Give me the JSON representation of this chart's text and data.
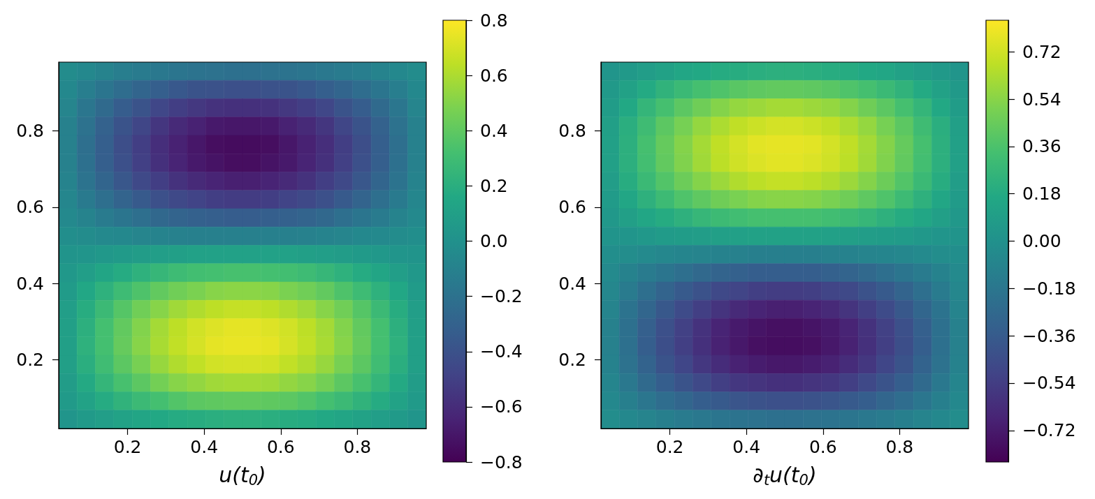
{
  "chart_data": [
    {
      "type": "heatmap",
      "xlabel": "u(t$_{0}$)",
      "x": [
        0.044,
        0.092,
        0.14,
        0.188,
        0.236,
        0.284,
        0.332,
        0.38,
        0.428,
        0.476,
        0.524,
        0.572,
        0.62,
        0.668,
        0.716,
        0.764,
        0.812,
        0.86,
        0.908,
        0.956
      ],
      "xlim": [
        0.02,
        0.98
      ],
      "ylim": [
        0.02,
        0.98
      ],
      "xticks": [
        0.2,
        0.4,
        0.6,
        0.8
      ],
      "yticks": [
        0.2,
        0.4,
        0.6,
        0.8
      ],
      "clim": [
        -0.8,
        0.8
      ],
      "cticks": [
        {
          "value": -0.8,
          "label": "−0.8"
        },
        {
          "value": -0.6,
          "label": "−0.6"
        },
        {
          "value": -0.4,
          "label": "−0.4"
        },
        {
          "value": -0.2,
          "label": "−0.2"
        },
        {
          "value": 0,
          "label": "0.0"
        },
        0.2,
        0.4,
        0.6,
        0.8
      ],
      "cells": [
        [
          -0.03,
          -0.06,
          -0.09,
          -0.12,
          -0.14,
          -0.16,
          -0.18,
          -0.19,
          -0.2,
          -0.21,
          -0.21,
          -0.2,
          -0.19,
          -0.18,
          -0.16,
          -0.14,
          -0.12,
          -0.09,
          -0.06,
          -0.03
        ],
        [
          -0.06,
          -0.12,
          -0.18,
          -0.23,
          -0.28,
          -0.32,
          -0.36,
          -0.39,
          -0.4,
          -0.41,
          -0.41,
          -0.4,
          -0.39,
          -0.36,
          -0.32,
          -0.28,
          -0.23,
          -0.18,
          -0.12,
          -0.06
        ],
        [
          -0.08,
          -0.17,
          -0.25,
          -0.33,
          -0.39,
          -0.46,
          -0.51,
          -0.54,
          -0.57,
          -0.58,
          -0.58,
          -0.57,
          -0.54,
          -0.51,
          -0.46,
          -0.39,
          -0.33,
          -0.25,
          -0.17,
          -0.08
        ],
        [
          -0.1,
          -0.2,
          -0.3,
          -0.39,
          -0.47,
          -0.55,
          -0.61,
          -0.65,
          -0.69,
          -0.7,
          -0.7,
          -0.69,
          -0.65,
          -0.61,
          -0.55,
          -0.47,
          -0.39,
          -0.3,
          -0.2,
          -0.1
        ],
        [
          -0.1,
          -0.22,
          -0.32,
          -0.42,
          -0.51,
          -0.59,
          -0.65,
          -0.7,
          -0.74,
          -0.75,
          -0.75,
          -0.74,
          -0.7,
          -0.65,
          -0.59,
          -0.51,
          -0.42,
          -0.32,
          -0.22,
          -0.1
        ],
        [
          -0.1,
          -0.21,
          -0.32,
          -0.41,
          -0.5,
          -0.58,
          -0.64,
          -0.69,
          -0.72,
          -0.74,
          -0.74,
          -0.72,
          -0.69,
          -0.64,
          -0.58,
          -0.5,
          -0.41,
          -0.32,
          -0.21,
          -0.1
        ],
        [
          -0.09,
          -0.19,
          -0.28,
          -0.37,
          -0.45,
          -0.51,
          -0.57,
          -0.61,
          -0.64,
          -0.66,
          -0.66,
          -0.64,
          -0.61,
          -0.57,
          -0.51,
          -0.45,
          -0.37,
          -0.28,
          -0.19,
          -0.09
        ],
        [
          -0.07,
          -0.15,
          -0.22,
          -0.29,
          -0.35,
          -0.41,
          -0.45,
          -0.48,
          -0.51,
          -0.52,
          -0.52,
          -0.51,
          -0.48,
          -0.45,
          -0.41,
          -0.35,
          -0.29,
          -0.22,
          -0.15,
          -0.07
        ],
        [
          -0.05,
          -0.09,
          -0.14,
          -0.18,
          -0.22,
          -0.26,
          -0.29,
          -0.31,
          -0.32,
          -0.33,
          -0.33,
          -0.32,
          -0.31,
          -0.29,
          -0.26,
          -0.22,
          -0.18,
          -0.14,
          -0.09,
          -0.05
        ],
        [
          -0.02,
          -0.03,
          -0.05,
          -0.06,
          -0.08,
          -0.09,
          -0.1,
          -0.11,
          -0.11,
          -0.11,
          -0.11,
          -0.11,
          -0.11,
          -0.1,
          -0.09,
          -0.08,
          -0.06,
          -0.05,
          -0.03,
          -0.02
        ],
        [
          0.02,
          0.03,
          0.05,
          0.06,
          0.08,
          0.09,
          0.1,
          0.11,
          0.11,
          0.11,
          0.11,
          0.11,
          0.11,
          0.1,
          0.09,
          0.08,
          0.06,
          0.05,
          0.03,
          0.02
        ],
        [
          0.05,
          0.09,
          0.14,
          0.18,
          0.22,
          0.26,
          0.29,
          0.31,
          0.32,
          0.33,
          0.33,
          0.32,
          0.31,
          0.29,
          0.26,
          0.22,
          0.18,
          0.14,
          0.09,
          0.05
        ],
        [
          0.07,
          0.15,
          0.22,
          0.29,
          0.35,
          0.41,
          0.45,
          0.48,
          0.51,
          0.52,
          0.52,
          0.51,
          0.48,
          0.45,
          0.41,
          0.35,
          0.29,
          0.22,
          0.15,
          0.07
        ],
        [
          0.09,
          0.19,
          0.28,
          0.37,
          0.45,
          0.51,
          0.57,
          0.61,
          0.64,
          0.66,
          0.66,
          0.64,
          0.61,
          0.57,
          0.51,
          0.45,
          0.37,
          0.28,
          0.19,
          0.09
        ],
        [
          0.1,
          0.21,
          0.32,
          0.41,
          0.5,
          0.58,
          0.64,
          0.69,
          0.72,
          0.74,
          0.74,
          0.72,
          0.69,
          0.64,
          0.58,
          0.5,
          0.41,
          0.32,
          0.21,
          0.1
        ],
        [
          0.1,
          0.22,
          0.32,
          0.42,
          0.51,
          0.59,
          0.65,
          0.7,
          0.74,
          0.75,
          0.75,
          0.74,
          0.7,
          0.65,
          0.59,
          0.51,
          0.42,
          0.32,
          0.22,
          0.1
        ],
        [
          0.1,
          0.2,
          0.3,
          0.39,
          0.47,
          0.55,
          0.61,
          0.65,
          0.69,
          0.7,
          0.7,
          0.69,
          0.65,
          0.61,
          0.55,
          0.47,
          0.39,
          0.3,
          0.2,
          0.1
        ],
        [
          0.08,
          0.17,
          0.25,
          0.33,
          0.39,
          0.46,
          0.51,
          0.54,
          0.57,
          0.58,
          0.58,
          0.57,
          0.54,
          0.51,
          0.46,
          0.39,
          0.33,
          0.25,
          0.17,
          0.08
        ],
        [
          0.06,
          0.12,
          0.18,
          0.23,
          0.28,
          0.32,
          0.36,
          0.39,
          0.4,
          0.41,
          0.41,
          0.4,
          0.39,
          0.36,
          0.32,
          0.28,
          0.23,
          0.18,
          0.12,
          0.06
        ],
        [
          0.03,
          0.06,
          0.09,
          0.12,
          0.14,
          0.16,
          0.18,
          0.19,
          0.2,
          0.21,
          0.21,
          0.2,
          0.19,
          0.18,
          0.16,
          0.14,
          0.12,
          0.09,
          0.06,
          0.03
        ]
      ]
    },
    {
      "type": "heatmap",
      "xlabel": "∂$_{t}$u(t$_{0}$)",
      "x": [
        0.044,
        0.092,
        0.14,
        0.188,
        0.236,
        0.284,
        0.332,
        0.38,
        0.428,
        0.476,
        0.524,
        0.572,
        0.62,
        0.668,
        0.716,
        0.764,
        0.812,
        0.86,
        0.908,
        0.956
      ],
      "xlim": [
        0.02,
        0.98
      ],
      "ylim": [
        0.02,
        0.98
      ],
      "xticks": [
        0.2,
        0.4,
        0.6,
        0.8
      ],
      "yticks": [
        0.2,
        0.4,
        0.6,
        0.8
      ],
      "clim": [
        -0.84,
        0.84
      ],
      "cticks": [
        {
          "value": -0.72,
          "label": "−0.72"
        },
        {
          "value": -0.54,
          "label": "−0.54"
        },
        {
          "value": -0.36,
          "label": "−0.36"
        },
        {
          "value": -0.18,
          "label": "−0.18"
        },
        {
          "value": 0,
          "label": "0.00"
        },
        0.18,
        0.36,
        0.54,
        0.72
      ],
      "cells": [
        [
          0.03,
          0.06,
          0.09,
          0.12,
          0.15,
          0.17,
          0.19,
          0.2,
          0.21,
          0.22,
          0.22,
          0.21,
          0.2,
          0.19,
          0.17,
          0.15,
          0.12,
          0.09,
          0.06,
          0.03
        ],
        [
          0.06,
          0.12,
          0.18,
          0.24,
          0.29,
          0.34,
          0.37,
          0.4,
          0.42,
          0.43,
          0.43,
          0.42,
          0.4,
          0.37,
          0.34,
          0.29,
          0.24,
          0.18,
          0.12,
          0.06
        ],
        [
          0.08,
          0.17,
          0.26,
          0.34,
          0.41,
          0.47,
          0.53,
          0.57,
          0.59,
          0.61,
          0.61,
          0.59,
          0.57,
          0.53,
          0.47,
          0.41,
          0.34,
          0.26,
          0.17,
          0.08
        ],
        [
          0.1,
          0.21,
          0.31,
          0.41,
          0.49,
          0.57,
          0.63,
          0.68,
          0.71,
          0.73,
          0.73,
          0.71,
          0.68,
          0.63,
          0.57,
          0.49,
          0.41,
          0.31,
          0.21,
          0.1
        ],
        [
          0.11,
          0.22,
          0.34,
          0.44,
          0.53,
          0.61,
          0.68,
          0.73,
          0.77,
          0.78,
          0.78,
          0.77,
          0.73,
          0.68,
          0.61,
          0.53,
          0.44,
          0.34,
          0.22,
          0.11
        ],
        [
          0.11,
          0.22,
          0.33,
          0.43,
          0.52,
          0.6,
          0.67,
          0.72,
          0.75,
          0.77,
          0.77,
          0.75,
          0.72,
          0.67,
          0.6,
          0.52,
          0.43,
          0.33,
          0.22,
          0.11
        ],
        [
          0.09,
          0.2,
          0.29,
          0.38,
          0.46,
          0.53,
          0.59,
          0.64,
          0.67,
          0.69,
          0.69,
          0.67,
          0.64,
          0.59,
          0.53,
          0.46,
          0.38,
          0.29,
          0.2,
          0.09
        ],
        [
          0.07,
          0.15,
          0.23,
          0.3,
          0.37,
          0.42,
          0.47,
          0.5,
          0.53,
          0.54,
          0.54,
          0.53,
          0.5,
          0.47,
          0.42,
          0.37,
          0.3,
          0.23,
          0.15,
          0.07
        ],
        [
          0.05,
          0.1,
          0.15,
          0.19,
          0.23,
          0.27,
          0.3,
          0.32,
          0.34,
          0.34,
          0.34,
          0.34,
          0.32,
          0.3,
          0.27,
          0.23,
          0.19,
          0.15,
          0.1,
          0.05
        ],
        [
          0.02,
          0.03,
          0.05,
          0.07,
          0.08,
          0.09,
          0.1,
          0.11,
          0.12,
          0.12,
          0.12,
          0.12,
          0.11,
          0.1,
          0.09,
          0.08,
          0.07,
          0.05,
          0.03,
          0.02
        ],
        [
          -0.02,
          -0.03,
          -0.05,
          -0.07,
          -0.08,
          -0.09,
          -0.1,
          -0.11,
          -0.12,
          -0.12,
          -0.12,
          -0.12,
          -0.11,
          -0.1,
          -0.09,
          -0.08,
          -0.07,
          -0.05,
          -0.03,
          -0.02
        ],
        [
          -0.05,
          -0.1,
          -0.15,
          -0.19,
          -0.23,
          -0.27,
          -0.3,
          -0.32,
          -0.34,
          -0.34,
          -0.34,
          -0.34,
          -0.32,
          -0.3,
          -0.27,
          -0.23,
          -0.19,
          -0.15,
          -0.1,
          -0.05
        ],
        [
          -0.07,
          -0.15,
          -0.23,
          -0.3,
          -0.37,
          -0.42,
          -0.47,
          -0.5,
          -0.53,
          -0.54,
          -0.54,
          -0.53,
          -0.5,
          -0.47,
          -0.42,
          -0.37,
          -0.3,
          -0.23,
          -0.15,
          -0.07
        ],
        [
          -0.09,
          -0.2,
          -0.29,
          -0.38,
          -0.46,
          -0.53,
          -0.59,
          -0.64,
          -0.67,
          -0.69,
          -0.69,
          -0.67,
          -0.64,
          -0.59,
          -0.53,
          -0.46,
          -0.38,
          -0.29,
          -0.2,
          -0.09
        ],
        [
          -0.11,
          -0.22,
          -0.33,
          -0.43,
          -0.52,
          -0.6,
          -0.67,
          -0.72,
          -0.75,
          -0.77,
          -0.77,
          -0.75,
          -0.72,
          -0.67,
          -0.6,
          -0.52,
          -0.43,
          -0.33,
          -0.22,
          -0.11
        ],
        [
          -0.11,
          -0.22,
          -0.34,
          -0.44,
          -0.53,
          -0.61,
          -0.68,
          -0.73,
          -0.77,
          -0.78,
          -0.78,
          -0.77,
          -0.73,
          -0.68,
          -0.61,
          -0.53,
          -0.44,
          -0.34,
          -0.22,
          -0.11
        ],
        [
          -0.1,
          -0.21,
          -0.31,
          -0.41,
          -0.49,
          -0.57,
          -0.63,
          -0.68,
          -0.71,
          -0.73,
          -0.73,
          -0.71,
          -0.68,
          -0.63,
          -0.57,
          -0.49,
          -0.41,
          -0.31,
          -0.21,
          -0.1
        ],
        [
          -0.08,
          -0.17,
          -0.26,
          -0.34,
          -0.41,
          -0.47,
          -0.53,
          -0.57,
          -0.59,
          -0.61,
          -0.61,
          -0.59,
          -0.57,
          -0.53,
          -0.47,
          -0.41,
          -0.34,
          -0.26,
          -0.17,
          -0.08
        ],
        [
          -0.06,
          -0.12,
          -0.18,
          -0.24,
          -0.29,
          -0.34,
          -0.37,
          -0.4,
          -0.42,
          -0.43,
          -0.43,
          -0.42,
          -0.4,
          -0.37,
          -0.34,
          -0.29,
          -0.24,
          -0.18,
          -0.12,
          -0.06
        ],
        [
          -0.03,
          -0.06,
          -0.09,
          -0.12,
          -0.15,
          -0.17,
          -0.19,
          -0.2,
          -0.21,
          -0.22,
          -0.22,
          -0.21,
          -0.2,
          -0.19,
          -0.17,
          -0.15,
          -0.12,
          -0.09,
          -0.06,
          -0.03
        ]
      ]
    }
  ]
}
